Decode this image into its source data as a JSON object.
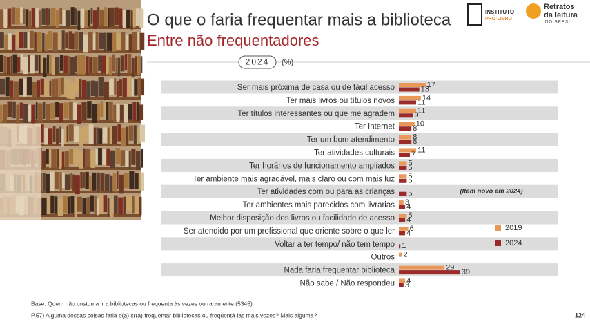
{
  "header": {
    "title": "O que o faria frequentar mais a biblioteca",
    "subtitle": "Entre não frequentadores",
    "year_badge": "2024",
    "unit": "(%)",
    "logo_left": "INSTITUTO",
    "logo_left_sub": "PRÓ-LIVRO",
    "logo_right_1": "Retratos",
    "logo_right_2": "da leitura",
    "logo_right_3": "NO BRASIL"
  },
  "chart_data": {
    "type": "hbar",
    "categories": [
      "Ser mais próxima de casa ou de fácil acesso",
      "Ter mais livros ou títulos novos",
      "Ter títulos interessantes ou que me agradem",
      "Ter Internet",
      "Ter um bom atendimento",
      "Ter atividades culturais",
      "Ter horários de funcionamento ampliados",
      "Ter ambiente mais agradável, mais claro ou com mais luz",
      "Ter atividades com ou para as crianças",
      "Ter ambientes mais parecidos com livrarias",
      "Melhor disposição dos livros ou facilidade de acesso",
      "Ser atendido por um profissional que oriente sobre o que ler",
      "Voltar a ter tempo/ não tem tempo",
      "Outros",
      "Nada faria frequentar biblioteca",
      "Não sabe / Não respondeu"
    ],
    "series": [
      {
        "name": "2019",
        "color": "#e8995a",
        "values": [
          17,
          14,
          11,
          10,
          8,
          11,
          5,
          5,
          null,
          3,
          5,
          6,
          null,
          2,
          29,
          4
        ]
      },
      {
        "name": "2024",
        "color": "#9b2a2a",
        "values": [
          13,
          11,
          9,
          8,
          8,
          7,
          5,
          5,
          5,
          4,
          4,
          4,
          1,
          null,
          39,
          3
        ]
      }
    ],
    "annotation": "(Item novo em 2024)"
  },
  "footer": {
    "base": "Base: Quem não costuma ir a bibliotecas ou frequenta às vezes ou raramente (5345)",
    "question": "P.57) Alguma dessas coisas faria o(a) sr(a) frequentar bibliotecas ou frequentá-las mais vezes? Mais alguma?",
    "page": "124"
  }
}
